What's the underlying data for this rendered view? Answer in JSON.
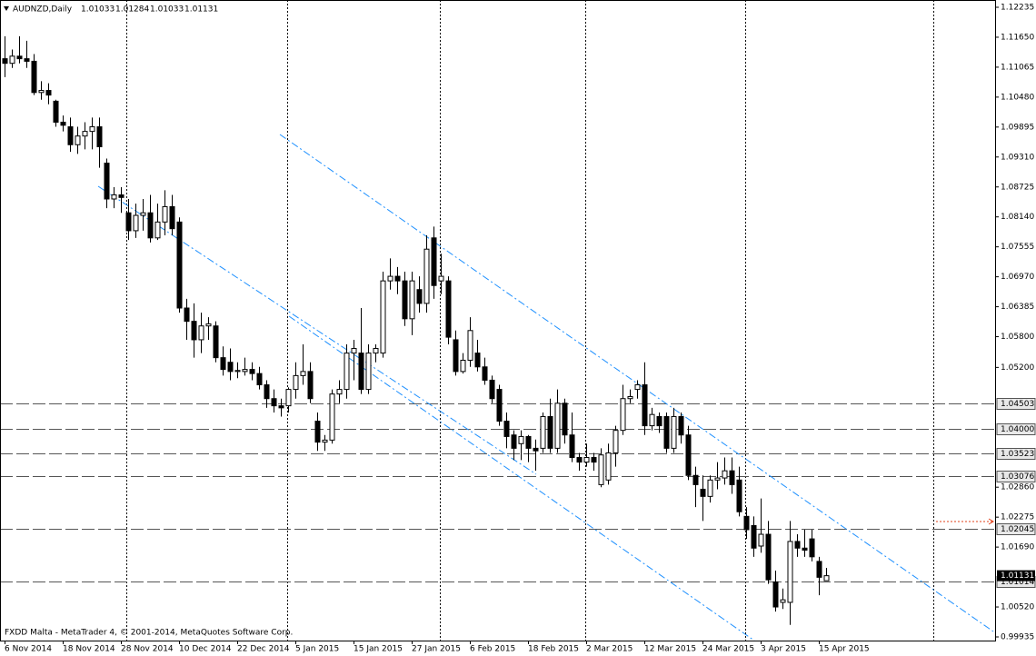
{
  "chart_data": {
    "type": "candlestick",
    "title": "AUDNZD,Daily",
    "footer": "FXDD Malta - MetaTrader 4, © 2001-2014, MetaQuotes Software Corp.",
    "categories": [
      "6 Nov 2014",
      null,
      null,
      null,
      null,
      null,
      null,
      null,
      "18 Nov 2014",
      null,
      null,
      null,
      null,
      null,
      null,
      null,
      "28 Nov 2014",
      null,
      null,
      null,
      null,
      null,
      null,
      null,
      "10 Dec 2014",
      null,
      null,
      null,
      null,
      null,
      null,
      null,
      "22 Dec 2014",
      null,
      null,
      null,
      null,
      null,
      null,
      null,
      "5 Jan 2015",
      null,
      null,
      null,
      null,
      null,
      null,
      null,
      "15 Jan 2015",
      null,
      null,
      null,
      null,
      null,
      null,
      null,
      "27 Jan 2015",
      null,
      null,
      null,
      null,
      null,
      null,
      null,
      "6 Feb 2015",
      null,
      null,
      null,
      null,
      null,
      null,
      null,
      "18 Feb 2015",
      null,
      null,
      null,
      null,
      null,
      null,
      null,
      "2 Mar 2015",
      null,
      null,
      null,
      null,
      null,
      null,
      null,
      "12 Mar 2015",
      null,
      null,
      null,
      null,
      null,
      null,
      null,
      "24 Mar 2015",
      null,
      null,
      null,
      null,
      null,
      null,
      null,
      "3 Apr 2015",
      null,
      null,
      null,
      null,
      null,
      null,
      null,
      "15 Apr 2015",
      null
    ],
    "open": [
      1.1123,
      1.1114,
      1.1128,
      1.1123,
      1.1118,
      1.1057,
      1.1061,
      1.104,
      1.0999,
      1.099,
      1.0955,
      1.0972,
      1.0981,
      1.099,
      1.0919,
      1.0849,
      1.0857,
      1.0822,
      1.0787,
      1.0817,
      1.0822,
      1.0773,
      1.0804,
      1.0834,
      1.0804,
      1.0636,
      1.061,
      1.0574,
      1.0601,
      1.0601,
      1.0539,
      1.053,
      1.0512,
      1.0512,
      1.0516,
      1.0508,
      1.0486,
      1.0459,
      1.0445,
      1.0445,
      1.0477,
      1.0504,
      1.0512,
      1.0415,
      1.0374,
      1.0378,
      1.0468,
      1.0477,
      1.0548,
      1.0548,
      1.0477,
      1.0548,
      1.0548,
      1.0689,
      1.0698,
      1.0689,
      1.0615,
      1.0672,
      1.0645,
      1.0773,
      1.0689,
      1.0689,
      1.0574,
      1.0512,
      1.0534,
      1.0548,
      1.0521,
      1.0495,
      1.0477,
      1.0415,
      1.0388,
      1.0371,
      1.0385,
      1.0362,
      1.0362,
      1.0424,
      1.0362,
      1.045,
      1.0388,
      1.0344,
      1.0335,
      1.0344,
      1.0291,
      1.03,
      1.0353,
      1.0397,
      1.0459,
      1.0477,
      1.0486,
      1.0406,
      1.0424,
      1.0424,
      1.0362,
      1.0424,
      1.0388,
      1.0309,
      1.0282,
      1.0268,
      1.03,
      1.0304,
      1.0318,
      1.03,
      1.0229,
      1.0211,
      1.0171,
      1.0194,
      1.0101,
      1.0061,
      1.0061,
      1.018,
      1.0167,
      1.0185,
      1.0141,
      1.01033
    ],
    "high": [
      1.1167,
      1.1141,
      1.1167,
      1.1158,
      1.1132,
      1.1079,
      1.1075,
      1.1043,
      1.1012,
      1.1008,
      1.099,
      1.0999,
      1.1008,
      1.1008,
      1.0928,
      1.0872,
      1.0872,
      1.0849,
      1.084,
      1.0849,
      1.0857,
      1.084,
      1.0866,
      1.0857,
      1.0813,
      1.0654,
      1.0645,
      1.0627,
      1.0618,
      1.061,
      1.0561,
      1.0557,
      1.053,
      1.0539,
      1.053,
      1.0521,
      1.0495,
      1.0477,
      1.0459,
      1.0481,
      1.053,
      1.0565,
      1.053,
      1.0432,
      1.0388,
      1.0477,
      1.0495,
      1.0565,
      1.0574,
      1.0636,
      1.0565,
      1.0565,
      1.0707,
      1.0733,
      1.0716,
      1.0707,
      1.0707,
      1.0698,
      1.0778,
      1.0795,
      1.0742,
      1.0698,
      1.0592,
      1.0548,
      1.0618,
      1.0574,
      1.0539,
      1.0504,
      1.0486,
      1.0432,
      1.0397,
      1.0397,
      1.0388,
      1.0379,
      1.0432,
      1.0459,
      1.0477,
      1.0459,
      1.0432,
      1.0353,
      1.0371,
      1.0353,
      1.0362,
      1.0371,
      1.0406,
      1.0486,
      1.0477,
      1.0495,
      1.053,
      1.0441,
      1.0432,
      1.0432,
      1.0441,
      1.0432,
      1.0406,
      1.0326,
      1.0309,
      1.0309,
      1.0335,
      1.0344,
      1.0344,
      1.0326,
      1.0247,
      1.0229,
      1.0264,
      1.022,
      1.0123,
      1.0088,
      1.022,
      1.0194,
      1.0203,
      1.0203,
      1.015,
      1.01284
    ],
    "low": [
      1.1087,
      1.1105,
      1.1114,
      1.1105,
      1.1052,
      1.1043,
      1.1034,
      1.099,
      1.0981,
      1.0941,
      1.0937,
      1.0946,
      1.0946,
      1.091,
      1.0831,
      1.0831,
      1.0822,
      1.0769,
      1.0773,
      1.0787,
      1.0764,
      1.0769,
      1.0778,
      1.0778,
      1.0627,
      1.0574,
      1.0539,
      1.0548,
      1.0574,
      1.053,
      1.0504,
      1.0495,
      1.0499,
      1.0504,
      1.0495,
      1.0477,
      1.0441,
      1.0432,
      1.0424,
      1.0432,
      1.0459,
      1.0486,
      1.045,
      1.0357,
      1.0357,
      1.0371,
      1.045,
      1.0459,
      1.0495,
      1.0468,
      1.0468,
      1.053,
      1.0539,
      1.0672,
      1.0663,
      1.0601,
      1.0583,
      1.0627,
      1.0627,
      1.0654,
      1.0663,
      1.0565,
      1.0504,
      1.0508,
      1.0521,
      1.0512,
      1.0486,
      1.045,
      1.0406,
      1.0362,
      1.0339,
      1.0339,
      1.0335,
      1.0318,
      1.0353,
      1.0353,
      1.0353,
      1.0371,
      1.0335,
      1.0318,
      1.0326,
      1.0318,
      1.0286,
      1.0291,
      1.0326,
      1.0388,
      1.045,
      1.0459,
      1.0388,
      1.0397,
      1.0392,
      1.0353,
      1.0353,
      1.0371,
      1.03,
      1.0247,
      1.022,
      1.0256,
      1.0282,
      1.0291,
      1.0273,
      1.0229,
      1.0185,
      1.015,
      1.0158,
      1.0097,
      1.0043,
      1.0048,
      1.0017,
      1.015,
      1.015,
      1.0141,
      1.0075,
      1.01033
    ],
    "close": [
      1.1114,
      1.1128,
      1.1123,
      1.1118,
      1.1057,
      1.1061,
      1.1052,
      1.0999,
      1.0993,
      1.0955,
      1.0972,
      1.0981,
      1.099,
      1.0951,
      1.0849,
      1.0857,
      1.0852,
      1.0787,
      1.0817,
      1.0822,
      1.0773,
      1.0804,
      1.0834,
      1.0791,
      1.0636,
      1.061,
      1.0574,
      1.0601,
      1.0605,
      1.0539,
      1.0516,
      1.0512,
      1.0514,
      1.0516,
      1.0508,
      1.0486,
      1.0459,
      1.0445,
      1.0441,
      1.0477,
      1.0504,
      1.0512,
      1.0459,
      1.0374,
      1.0378,
      1.0468,
      1.0477,
      1.0548,
      1.0557,
      1.0477,
      1.0548,
      1.0557,
      1.0689,
      1.0698,
      1.0689,
      1.0615,
      1.0689,
      1.0645,
      1.0751,
      1.068,
      1.0698,
      1.0579,
      1.0512,
      1.0534,
      1.0592,
      1.0521,
      1.0495,
      1.0459,
      1.0415,
      1.0385,
      1.0362,
      1.0385,
      1.0362,
      1.0357,
      1.0424,
      1.0362,
      1.045,
      1.0388,
      1.0344,
      1.0335,
      1.0344,
      1.0335,
      1.0349,
      1.0353,
      1.0397,
      1.0459,
      1.0463,
      1.0486,
      1.0406,
      1.0428,
      1.0406,
      1.0362,
      1.0424,
      1.0388,
      1.0309,
      1.0291,
      1.0268,
      1.03,
      1.0304,
      1.0318,
      1.0291,
      1.0238,
      1.0203,
      1.0167,
      1.0194,
      1.0105,
      1.0052,
      1.0066,
      1.018,
      1.0167,
      1.0163,
      1.015,
      1.011,
      1.01131
    ],
    "ylim": [
      0.99935,
      1.12235
    ],
    "yticks": [
      1.12235,
      {
        "value": 1.1165,
        "label": "1.11650"
      },
      1.11065,
      {
        "value": 1.1048,
        "label": "1.10480"
      },
      1.09895,
      {
        "value": 1.0931,
        "label": "1.09310"
      },
      1.08725,
      {
        "value": 1.0814,
        "label": "1.08140"
      },
      1.07555,
      {
        "value": 1.0697,
        "label": "1.06970"
      },
      1.06385,
      {
        "value": 1.058,
        "label": "1.05800"
      },
      {
        "value": 1.052,
        "label": "1.05200"
      },
      {
        "value": 1.0286,
        "label": "1.02860"
      },
      1.02275,
      {
        "value": 1.0169,
        "label": "1.01690"
      },
      {
        "value": 1.0052,
        "label": "1.00520"
      },
      0.99935
    ],
    "hlines": [
      1.04503,
      {
        "value": 1.04,
        "label": "1.04000"
      },
      1.03523,
      1.03076,
      1.02045,
      1.01014
    ]
  }
}
